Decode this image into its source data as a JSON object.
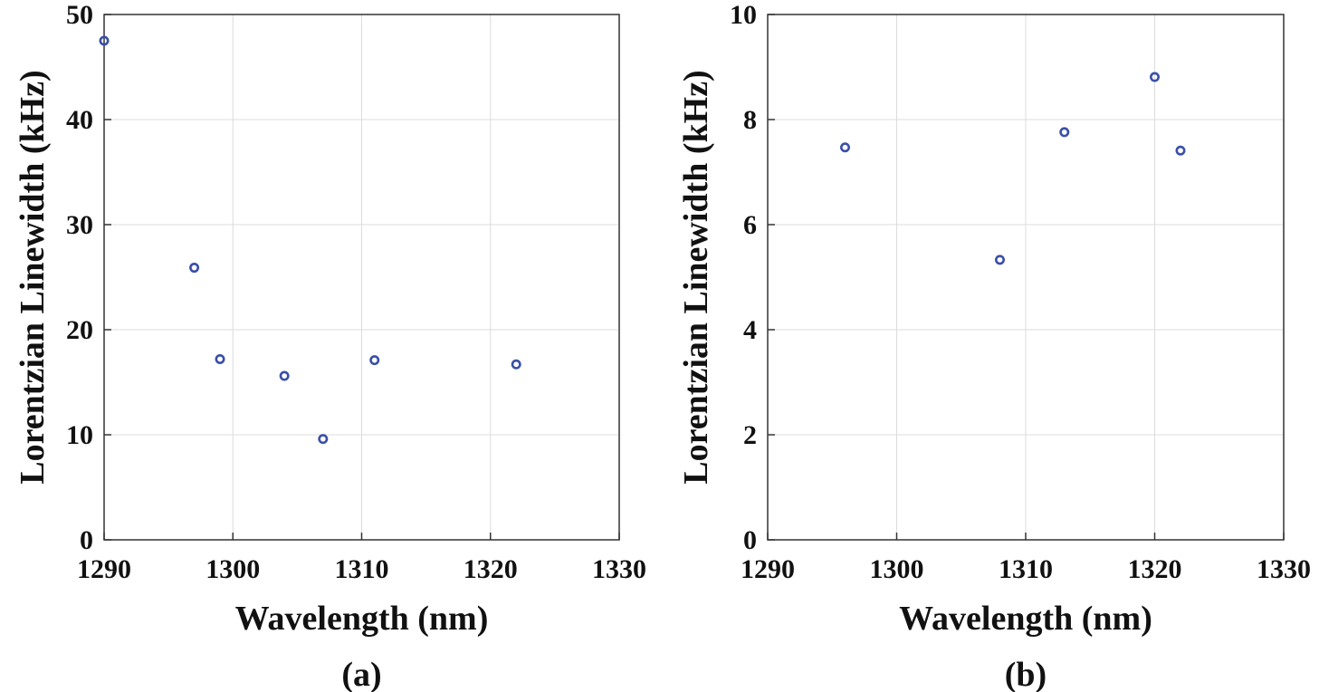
{
  "colors": {
    "marker": "#3a4fa8",
    "axis": "#333333",
    "grid": "#dcdcdc"
  },
  "chart_data": [
    {
      "type": "scatter",
      "panel_label": "(a)",
      "title": "",
      "xlabel": "Wavelength (nm)",
      "ylabel": "Lorentzian Linewidth (kHz)",
      "xlim": [
        1290,
        1330
      ],
      "ylim": [
        0,
        50
      ],
      "xticks": [
        1290,
        1300,
        1310,
        1320,
        1330
      ],
      "yticks": [
        0,
        10,
        20,
        30,
        40,
        50
      ],
      "grid": true,
      "marker": "open-circle",
      "series": [
        {
          "x": [
            1290,
            1297,
            1299,
            1304,
            1307,
            1311,
            1322
          ],
          "y": [
            47.5,
            25.9,
            17.2,
            15.6,
            9.6,
            17.1,
            16.7
          ]
        }
      ]
    },
    {
      "type": "scatter",
      "panel_label": "(b)",
      "title": "",
      "xlabel": "Wavelength (nm)",
      "ylabel": "Lorentzian Linewidth (kHz)",
      "xlim": [
        1290,
        1330
      ],
      "ylim": [
        0,
        10
      ],
      "xticks": [
        1290,
        1300,
        1310,
        1320,
        1330
      ],
      "yticks": [
        0,
        2,
        4,
        6,
        8,
        10
      ],
      "grid": true,
      "marker": "open-circle",
      "series": [
        {
          "x": [
            1296,
            1308,
            1313,
            1320,
            1322
          ],
          "y": [
            7.47,
            5.33,
            7.76,
            8.81,
            7.41
          ]
        }
      ]
    }
  ]
}
